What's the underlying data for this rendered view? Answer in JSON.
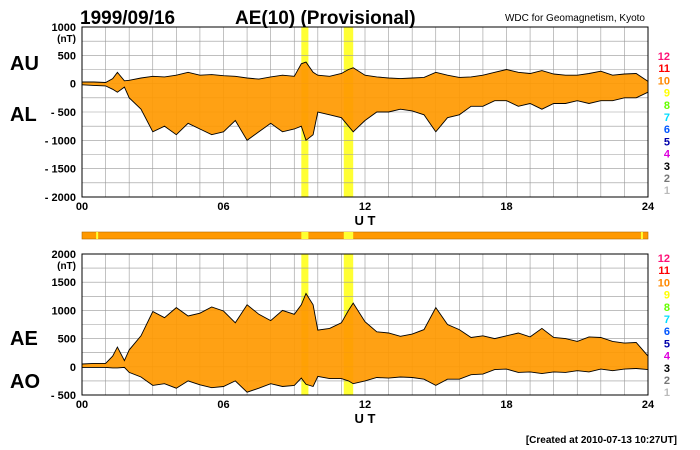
{
  "header": {
    "date": "1999/09/16",
    "title": "AE(10) (Provisional)",
    "source": "WDC for Geomagnetism, Kyoto"
  },
  "footer": {
    "created": "[Created at 2010-07-13 10:27UT]"
  },
  "colors": {
    "fill_main": "#ff9900",
    "highlight": "#ffff33",
    "grid": "#999999"
  },
  "station_legend": [
    {
      "label": "12",
      "color": "#ff1177"
    },
    {
      "label": "11",
      "color": "#ff0000"
    },
    {
      "label": "10",
      "color": "#ff8800"
    },
    {
      "label": "9",
      "color": "#ffff00"
    },
    {
      "label": "8",
      "color": "#66ff00"
    },
    {
      "label": "7",
      "color": "#00ddff"
    },
    {
      "label": "6",
      "color": "#0055ff"
    },
    {
      "label": "5",
      "color": "#0000aa"
    },
    {
      "label": "4",
      "color": "#dd00dd"
    },
    {
      "label": "3",
      "color": "#000000"
    },
    {
      "label": "2",
      "color": "#777777"
    },
    {
      "label": "1",
      "color": "#bbbbbb"
    }
  ],
  "chart_data": [
    {
      "type": "area",
      "name": "AU/AL",
      "upper_label": "AU",
      "lower_label": "AL",
      "unit": "(nT)",
      "xlabel": "U T",
      "xlim": [
        0,
        24
      ],
      "ylim": [
        -2000,
        1000
      ],
      "yticks": [
        {
          "v": 1000,
          "label": "1000"
        },
        {
          "v": 500,
          "label": "500"
        },
        {
          "v": 0,
          "label": "0"
        },
        {
          "v": -500,
          "label": "- 500"
        },
        {
          "v": -1000,
          "label": "- 1000"
        },
        {
          "v": -1500,
          "label": "- 1500"
        },
        {
          "v": -2000,
          "label": "- 2000"
        }
      ],
      "xticks": [
        {
          "v": 0,
          "label": "00"
        },
        {
          "v": 6,
          "label": "06"
        },
        {
          "v": 12,
          "label": "12"
        },
        {
          "v": 18,
          "label": "18"
        },
        {
          "v": 24,
          "label": "24"
        }
      ],
      "highlight_ranges": [
        [
          9.3,
          9.6
        ],
        [
          11.1,
          11.5
        ]
      ],
      "x": [
        0,
        0.5,
        1,
        1.3,
        1.5,
        1.8,
        2,
        2.5,
        3,
        3.5,
        4,
        4.5,
        5,
        5.5,
        6,
        6.5,
        7,
        7.5,
        8,
        8.5,
        9,
        9.3,
        9.5,
        9.8,
        10,
        10.5,
        11,
        11.3,
        11.5,
        12,
        12.5,
        13,
        13.5,
        14,
        14.5,
        15,
        15.5,
        16,
        16.5,
        17,
        17.5,
        18,
        18.5,
        19,
        19.5,
        20,
        20.5,
        21,
        21.5,
        22,
        22.5,
        23,
        23.5,
        24
      ],
      "upper": [
        30,
        30,
        20,
        90,
        200,
        50,
        60,
        100,
        130,
        120,
        150,
        200,
        150,
        160,
        140,
        130,
        100,
        80,
        120,
        150,
        130,
        350,
        380,
        200,
        150,
        130,
        180,
        250,
        280,
        150,
        120,
        100,
        90,
        100,
        110,
        200,
        150,
        110,
        120,
        150,
        200,
        250,
        200,
        180,
        230,
        170,
        150,
        150,
        180,
        220,
        150,
        170,
        180,
        40
      ],
      "lower": [
        -20,
        -30,
        -40,
        -100,
        -150,
        -60,
        -250,
        -450,
        -850,
        -750,
        -900,
        -700,
        -800,
        -900,
        -850,
        -650,
        -1000,
        -850,
        -700,
        -850,
        -800,
        -750,
        -1000,
        -900,
        -500,
        -550,
        -600,
        -750,
        -850,
        -650,
        -500,
        -500,
        -450,
        -480,
        -550,
        -850,
        -600,
        -550,
        -400,
        -400,
        -300,
        -300,
        -400,
        -350,
        -450,
        -350,
        -350,
        -300,
        -350,
        -300,
        -300,
        -250,
        -250,
        -150
      ]
    },
    {
      "type": "area",
      "name": "AE/AO",
      "upper_label": "AE",
      "lower_label": "AO",
      "unit": "(nT)",
      "xlabel": "U T",
      "xlim": [
        0,
        24
      ],
      "ylim": [
        -500,
        2000
      ],
      "yticks": [
        {
          "v": 2000,
          "label": "2000"
        },
        {
          "v": 1500,
          "label": "1500"
        },
        {
          "v": 1000,
          "label": "1000"
        },
        {
          "v": 500,
          "label": "500"
        },
        {
          "v": 0,
          "label": "0"
        },
        {
          "v": -500,
          "label": "- 500"
        }
      ],
      "xticks": [
        {
          "v": 0,
          "label": "00"
        },
        {
          "v": 6,
          "label": "06"
        },
        {
          "v": 12,
          "label": "12"
        },
        {
          "v": 18,
          "label": "18"
        },
        {
          "v": 24,
          "label": "24"
        }
      ],
      "highlight_ranges": [
        [
          9.3,
          9.6
        ],
        [
          11.1,
          11.5
        ]
      ],
      "x": [
        0,
        0.5,
        1,
        1.3,
        1.5,
        1.8,
        2,
        2.5,
        3,
        3.5,
        4,
        4.5,
        5,
        5.5,
        6,
        6.5,
        7,
        7.5,
        8,
        8.5,
        9,
        9.3,
        9.5,
        9.8,
        10,
        10.5,
        11,
        11.3,
        11.5,
        12,
        12.5,
        13,
        13.5,
        14,
        14.5,
        15,
        15.5,
        16,
        16.5,
        17,
        17.5,
        18,
        18.5,
        19,
        19.5,
        20,
        20.5,
        21,
        21.5,
        22,
        22.5,
        23,
        23.5,
        24
      ],
      "upper": [
        50,
        60,
        60,
        190,
        350,
        110,
        300,
        550,
        980,
        870,
        1050,
        900,
        950,
        1060,
        990,
        780,
        1100,
        930,
        820,
        1000,
        930,
        1100,
        1300,
        1100,
        650,
        680,
        780,
        1000,
        1130,
        800,
        620,
        600,
        540,
        580,
        660,
        1050,
        750,
        660,
        520,
        550,
        500,
        550,
        600,
        530,
        680,
        520,
        500,
        450,
        530,
        520,
        450,
        420,
        430,
        190
      ],
      "lower": [
        -10,
        -10,
        -10,
        -20,
        -20,
        -10,
        -100,
        -180,
        -330,
        -300,
        -380,
        -250,
        -320,
        -370,
        -350,
        -250,
        -450,
        -380,
        -300,
        -350,
        -330,
        -200,
        -310,
        -350,
        -170,
        -210,
        -210,
        -250,
        -300,
        -250,
        -190,
        -200,
        -180,
        -190,
        -220,
        -330,
        -220,
        -220,
        -140,
        -130,
        -50,
        -40,
        -100,
        -90,
        -120,
        -90,
        -100,
        -70,
        -90,
        -40,
        -70,
        -40,
        -30,
        -50
      ]
    }
  ]
}
